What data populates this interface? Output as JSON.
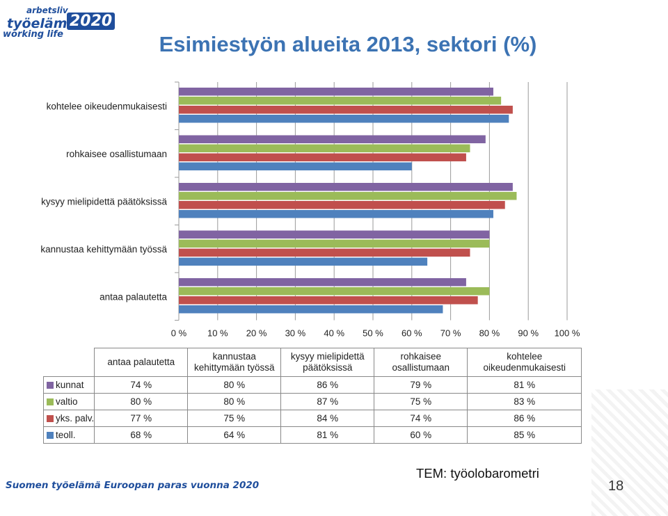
{
  "logo": {
    "line1": "arbetsliv",
    "line2": "työelämä",
    "year": "2020",
    "line3": "working life"
  },
  "title": "Esimiestyön alueita 2013, sektori (%)",
  "chart_data": {
    "type": "bar",
    "orientation": "horizontal",
    "categories": [
      "antaa palautetta",
      "kannustaa kehittymään työssä",
      "kysyy mielipidettä päätöksissä",
      "rohkaisee osallistumaan",
      "kohtelee oikeudenmukaisesti"
    ],
    "series": [
      {
        "name": "kunnat",
        "color": "#8064a2",
        "values": [
          74,
          80,
          86,
          79,
          81
        ]
      },
      {
        "name": "valtio",
        "color": "#9bbb59",
        "values": [
          80,
          80,
          87,
          75,
          83
        ]
      },
      {
        "name": "yks. palv.",
        "color": "#c0504d",
        "values": [
          77,
          75,
          84,
          74,
          86
        ]
      },
      {
        "name": "teoll.",
        "color": "#4f81bd",
        "values": [
          68,
          64,
          81,
          60,
          85
        ]
      }
    ],
    "xlim": [
      0,
      100
    ],
    "xticks": [
      "0 %",
      "10 %",
      "20 %",
      "30 %",
      "40 %",
      "50 %",
      "60 %",
      "70 %",
      "80 %",
      "90 %",
      "100 %"
    ],
    "grid": true,
    "legend": "data table below chart",
    "table": {
      "headers": [
        "antaa palautetta",
        "kannustaa kehittymään työssä",
        "kysyy mielipidettä päätöksissä",
        "rohkaisee osallistumaan",
        "kohtelee oikeudenmukaisesti"
      ],
      "rows": [
        {
          "label": "kunnat",
          "color": "#8064a2",
          "cells": [
            "74 %",
            "80 %",
            "86 %",
            "79 %",
            "81 %"
          ]
        },
        {
          "label": "valtio",
          "color": "#9bbb59",
          "cells": [
            "80 %",
            "80 %",
            "87 %",
            "75 %",
            "83 %"
          ]
        },
        {
          "label": "yks. palv.",
          "color": "#c0504d",
          "cells": [
            "77 %",
            "75 %",
            "84 %",
            "74 %",
            "86 %"
          ]
        },
        {
          "label": "teoll.",
          "color": "#4f81bd",
          "cells": [
            "68 %",
            "64 %",
            "81 %",
            "60 %",
            "85 %"
          ]
        }
      ]
    }
  },
  "footer": "Suomen työelämä Euroopan paras vuonna 2020",
  "source": "TEM: työolobarometri",
  "page_number": "18"
}
